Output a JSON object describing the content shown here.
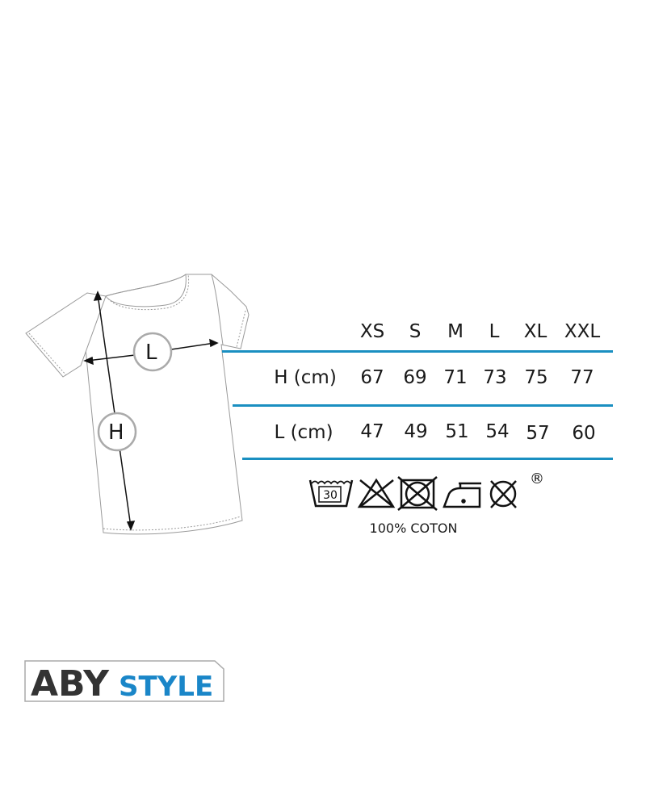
{
  "diagram": {
    "width_marker": "L",
    "height_marker": "H"
  },
  "size_table": {
    "columns": [
      "XS",
      "S",
      "M",
      "L",
      "XL",
      "XXL"
    ],
    "rows": [
      {
        "label": "H (cm)",
        "values": [
          "67",
          "69",
          "71",
          "73",
          "75",
          "77"
        ]
      },
      {
        "label": "L (cm)",
        "values": [
          "47",
          "49",
          "51",
          "54",
          "57",
          "60"
        ]
      }
    ],
    "rule_color": "#1a8fc1"
  },
  "care": {
    "icons": [
      "wash-30-icon",
      "no-bleach-icon",
      "no-tumble-dry-icon",
      "iron-low-icon",
      "no-dry-clean-icon"
    ],
    "wash_temp": "30",
    "registered": "®",
    "material": "100% COTON"
  },
  "brand": {
    "part1": "ABY",
    "part2": "STYLE",
    "color_dark": "#333333",
    "color_accent": "#1a86c8"
  }
}
